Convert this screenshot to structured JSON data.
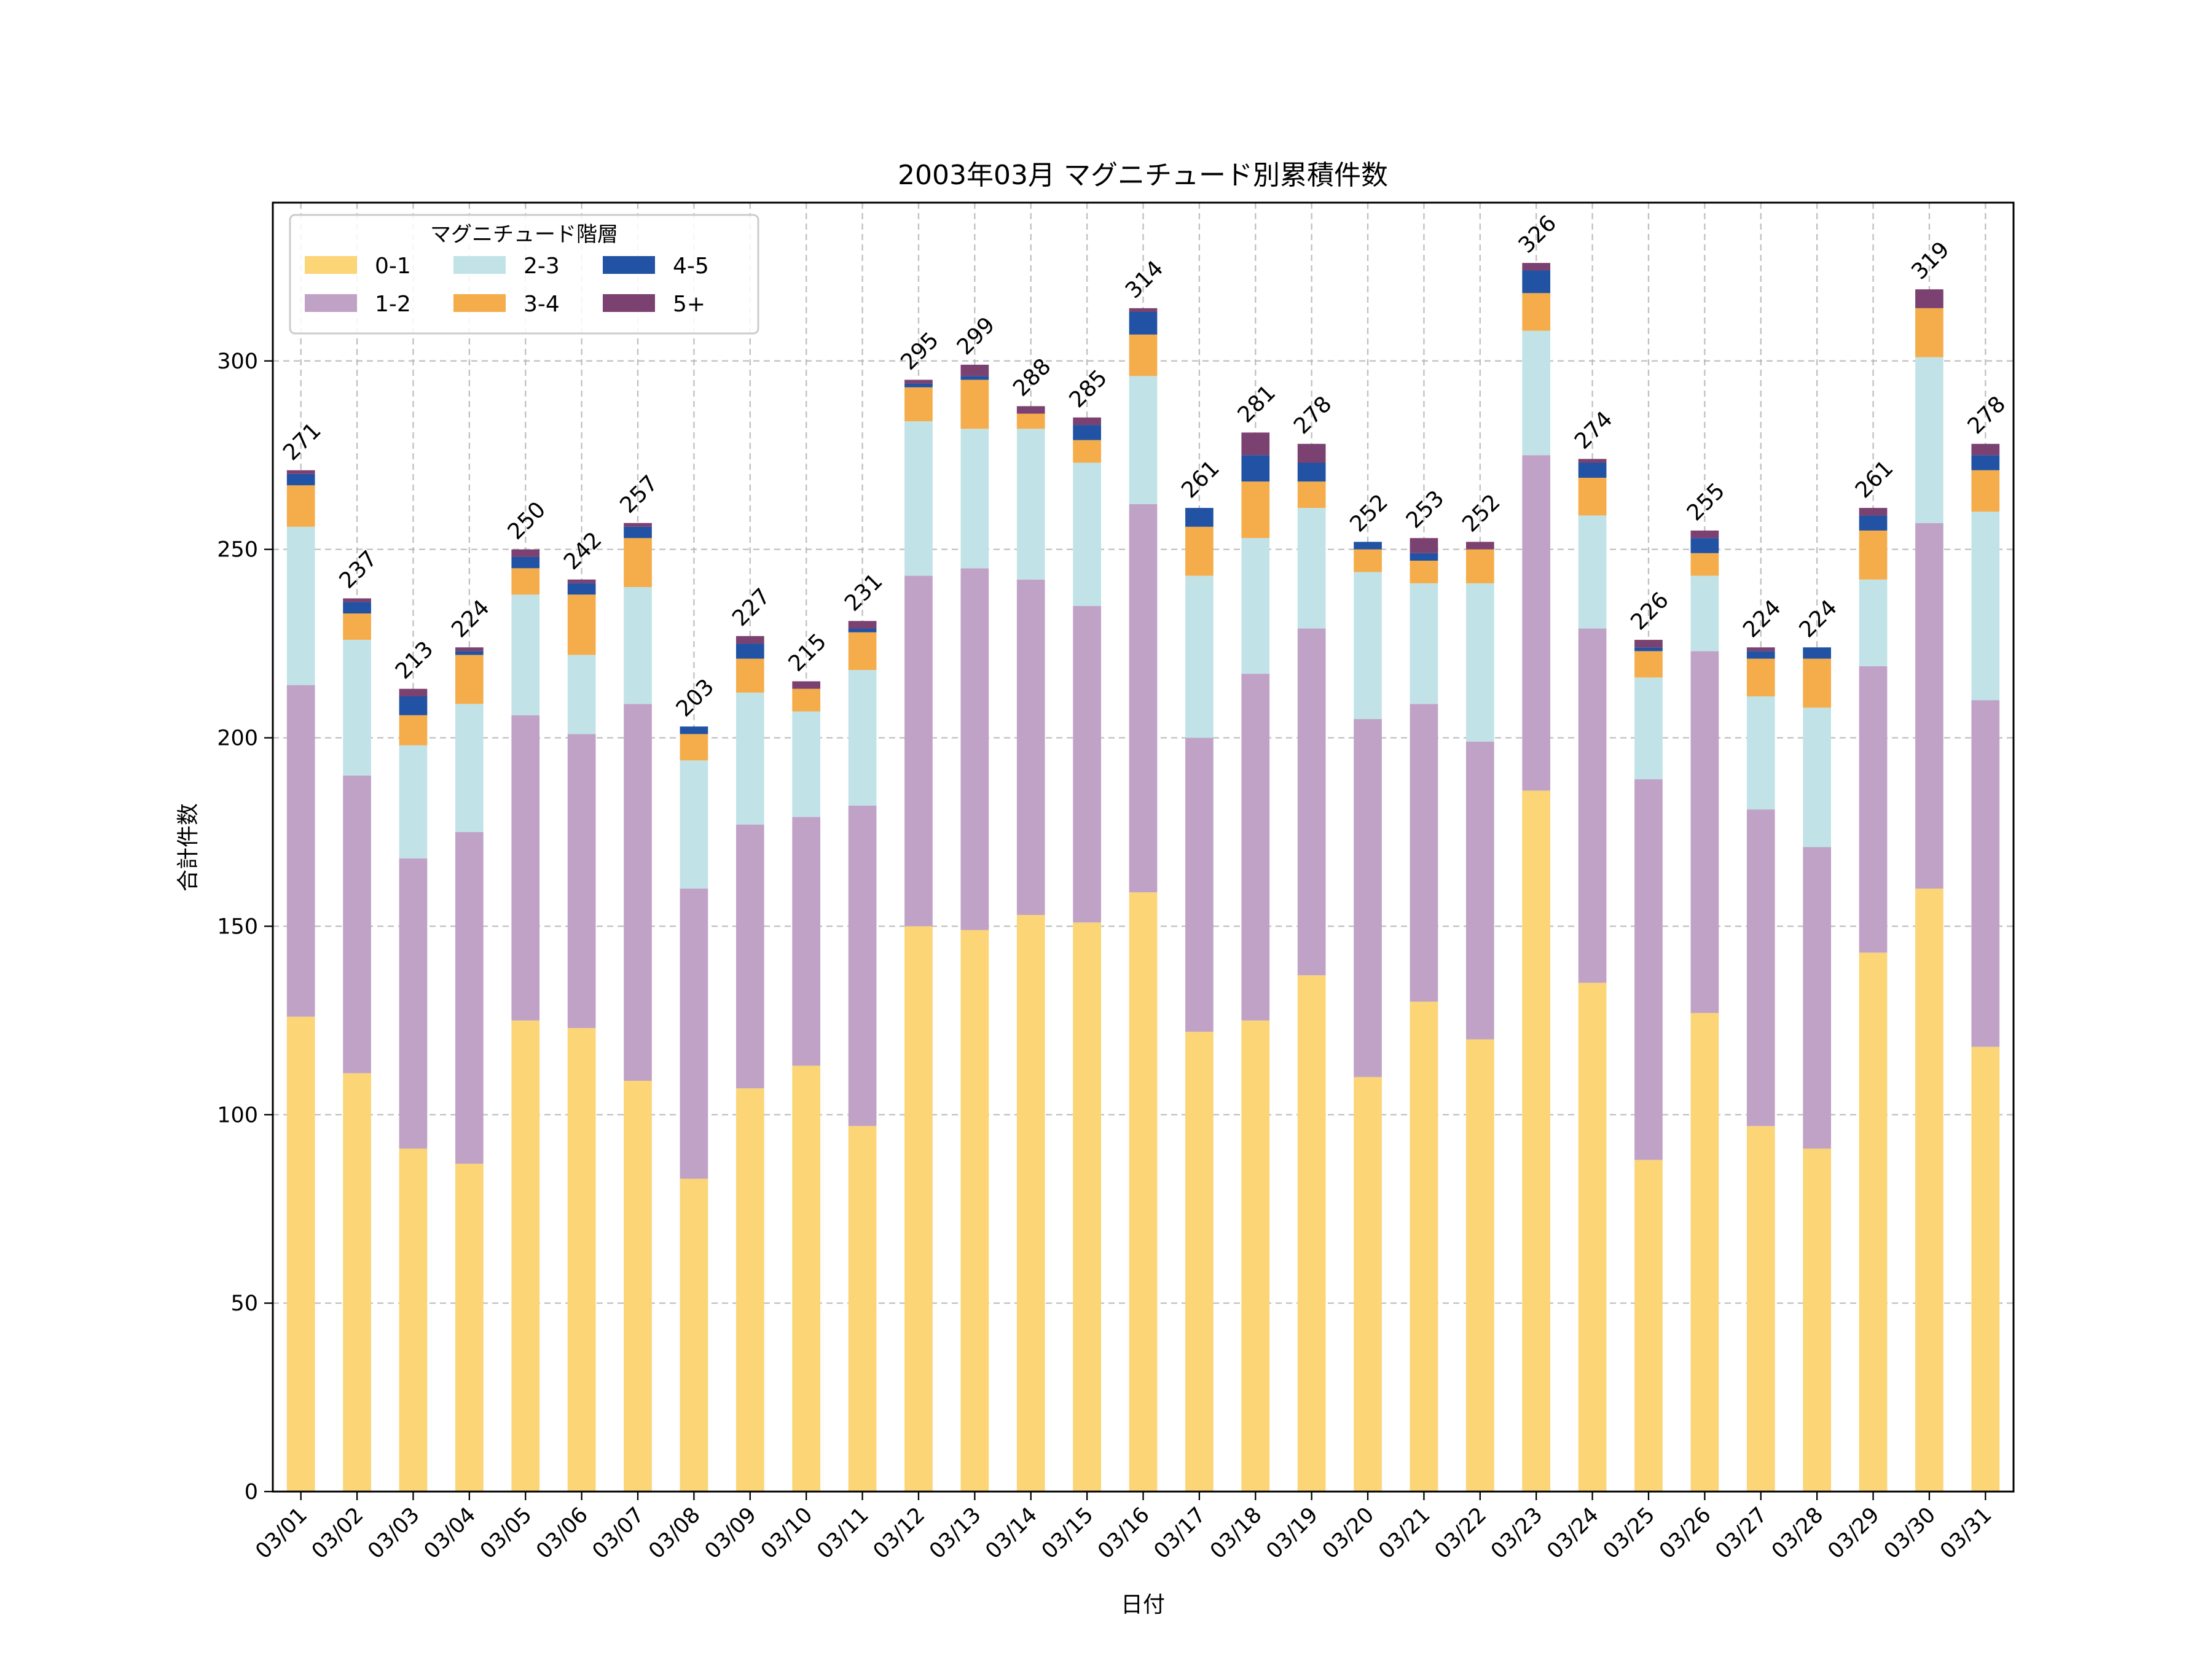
{
  "chart_data": {
    "type": "bar",
    "stacked": true,
    "title": "2003年03月 マグニチュード別累積件数",
    "xlabel": "日付",
    "ylabel": "合計件数",
    "ylim": [
      0,
      342
    ],
    "yticks": [
      0,
      50,
      100,
      150,
      200,
      250,
      300
    ],
    "grid": true,
    "legend": {
      "title": "マグニチュード階層",
      "position": "top-left",
      "columns": 3
    },
    "categories": [
      "03/01",
      "03/02",
      "03/03",
      "03/04",
      "03/05",
      "03/06",
      "03/07",
      "03/08",
      "03/09",
      "03/10",
      "03/11",
      "03/12",
      "03/13",
      "03/14",
      "03/15",
      "03/16",
      "03/17",
      "03/18",
      "03/19",
      "03/20",
      "03/21",
      "03/22",
      "03/23",
      "03/24",
      "03/25",
      "03/26",
      "03/27",
      "03/28",
      "03/29",
      "03/30",
      "03/31"
    ],
    "series": [
      {
        "name": "0-1",
        "color": "#fbd576",
        "values": [
          126,
          111,
          91,
          87,
          125,
          123,
          109,
          83,
          107,
          113,
          97,
          150,
          149,
          153,
          151,
          159,
          122,
          125,
          137,
          110,
          130,
          120,
          186,
          135,
          88,
          127,
          97,
          91,
          143,
          160,
          118
        ]
      },
      {
        "name": "1-2",
        "color": "#c0a2c7",
        "values": [
          88,
          79,
          77,
          88,
          81,
          78,
          100,
          77,
          70,
          66,
          85,
          93,
          96,
          89,
          84,
          103,
          78,
          92,
          92,
          95,
          79,
          79,
          89,
          94,
          101,
          96,
          84,
          80,
          76,
          97,
          92
        ]
      },
      {
        "name": "2-3",
        "color": "#c1e3e7",
        "values": [
          42,
          36,
          30,
          34,
          32,
          21,
          31,
          34,
          35,
          28,
          36,
          41,
          37,
          40,
          38,
          34,
          43,
          36,
          32,
          39,
          32,
          42,
          33,
          30,
          27,
          20,
          30,
          37,
          23,
          44,
          50
        ]
      },
      {
        "name": "3-4",
        "color": "#f5ac4a",
        "values": [
          11,
          7,
          8,
          13,
          7,
          16,
          13,
          7,
          9,
          6,
          10,
          9,
          13,
          4,
          6,
          11,
          13,
          15,
          7,
          6,
          6,
          9,
          10,
          10,
          7,
          6,
          10,
          13,
          13,
          13,
          11
        ]
      },
      {
        "name": "4-5",
        "color": "#2152a3",
        "values": [
          3,
          3,
          5,
          1,
          3,
          3,
          3,
          2,
          4,
          0,
          1,
          1,
          1,
          0,
          4,
          6,
          5,
          7,
          5,
          2,
          2,
          0,
          6,
          4,
          1,
          4,
          2,
          3,
          4,
          0,
          4
        ]
      },
      {
        "name": "5+",
        "color": "#7b4170",
        "values": [
          1,
          1,
          2,
          1,
          2,
          1,
          1,
          0,
          2,
          2,
          2,
          1,
          3,
          2,
          2,
          1,
          0,
          6,
          5,
          0,
          4,
          2,
          2,
          1,
          2,
          2,
          1,
          0,
          2,
          5,
          3
        ]
      }
    ],
    "totals": [
      271,
      237,
      213,
      224,
      250,
      242,
      257,
      203,
      227,
      215,
      231,
      295,
      299,
      288,
      285,
      314,
      261,
      281,
      278,
      252,
      253,
      252,
      326,
      274,
      226,
      255,
      224,
      224,
      261,
      319,
      278
    ]
  }
}
